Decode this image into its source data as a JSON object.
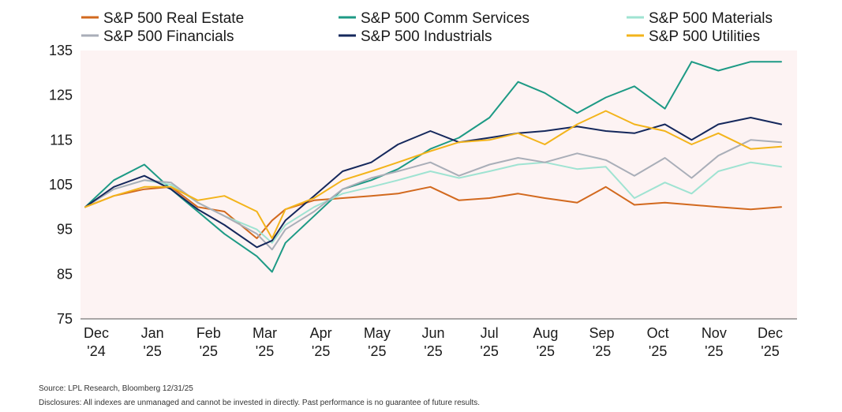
{
  "chart_data": {
    "type": "line",
    "title": "",
    "xlabel": "",
    "ylabel": "",
    "ylim": [
      75,
      135
    ],
    "y_ticks": [
      135,
      125,
      115,
      105,
      95,
      85,
      75
    ],
    "x_ticks": [
      {
        "month": "Dec",
        "year": "'24"
      },
      {
        "month": "Jan",
        "year": "'25"
      },
      {
        "month": "Feb",
        "year": "'25"
      },
      {
        "month": "Mar",
        "year": "'25"
      },
      {
        "month": "Apr",
        "year": "'25"
      },
      {
        "month": "May",
        "year": "'25"
      },
      {
        "month": "Jun",
        "year": "'25"
      },
      {
        "month": "Jul",
        "year": "'25"
      },
      {
        "month": "Aug",
        "year": "'25"
      },
      {
        "month": "Sep",
        "year": "'25"
      },
      {
        "month": "Oct",
        "year": "'25"
      },
      {
        "month": "Nov",
        "year": "'25"
      },
      {
        "month": "Dec",
        "year": "'25"
      }
    ],
    "x_dates": [
      "2024-12-31",
      "2025-01-15",
      "2025-01-31",
      "2025-02-14",
      "2025-02-28",
      "2025-03-14",
      "2025-03-31",
      "2025-04-08",
      "2025-04-15",
      "2025-04-30",
      "2025-05-15",
      "2025-05-30",
      "2025-06-13",
      "2025-06-30",
      "2025-07-15",
      "2025-07-31",
      "2025-08-15",
      "2025-08-29",
      "2025-09-15",
      "2025-09-30",
      "2025-10-15",
      "2025-10-31",
      "2025-11-14",
      "2025-11-28",
      "2025-12-15",
      "2025-12-31"
    ],
    "legend_position": "top",
    "grid": false,
    "series": [
      {
        "name": "S&P 500 Real Estate",
        "color": "#d2691e",
        "values": [
          100,
          102.5,
          104,
          104.5,
          100,
          99,
          93,
          97,
          99.5,
          101.5,
          102,
          102.5,
          103,
          104.5,
          101.5,
          102,
          103,
          102,
          101,
          104.5,
          100.5,
          101,
          100.5,
          100,
          99.5,
          100
        ]
      },
      {
        "name": "S&P 500 Comm Services",
        "color": "#1d9a85",
        "values": [
          100,
          106,
          109.5,
          104,
          99,
          94,
          89,
          85.5,
          92,
          98,
          104,
          106,
          108.5,
          113,
          115.5,
          120,
          128,
          125.5,
          121,
          124.5,
          127,
          122,
          132.5,
          130.5,
          132.5,
          132.5
        ]
      },
      {
        "name": "S&P 500 Materials",
        "color": "#9fe3d2",
        "values": [
          100,
          104,
          106,
          105,
          101,
          98,
          95,
          92,
          96,
          100,
          103,
          104.5,
          106,
          108,
          106.5,
          108,
          109.5,
          110,
          108.5,
          109,
          102,
          105.5,
          103,
          108,
          110,
          109
        ]
      },
      {
        "name": "S&P 500 Financials",
        "color": "#a9aeb8",
        "values": [
          100,
          104,
          106,
          105.5,
          101,
          98,
          94,
          90.5,
          95,
          99,
          104,
          106.5,
          108,
          110,
          107,
          109.5,
          111,
          110,
          112,
          110.5,
          107,
          111,
          106.5,
          111.5,
          115,
          114.5
        ]
      },
      {
        "name": "S&P 500 Industrials",
        "color": "#15285c",
        "values": [
          100,
          104.5,
          107,
          104,
          99.5,
          96,
          91,
          92.5,
          97,
          102.5,
          108,
          110,
          114,
          117,
          114.5,
          115.5,
          116.5,
          117,
          118,
          117,
          116.5,
          118.5,
          115,
          118.5,
          120,
          118.5
        ]
      },
      {
        "name": "S&P 500 Utilities",
        "color": "#f3b41b",
        "values": [
          100,
          102.5,
          104.5,
          104.5,
          101.5,
          102.5,
          99,
          93,
          99.5,
          102,
          106,
          108,
          110,
          112.5,
          114.5,
          115,
          116.5,
          114,
          118.5,
          121.5,
          118.5,
          117,
          114,
          116.5,
          113,
          113.5
        ]
      }
    ]
  },
  "footer": {
    "source": "Source: LPL Research, Bloomberg 12/31/25",
    "disclosure": "Disclosures: All indexes are unmanaged and cannot be invested in directly. Past performance is no guarantee of future results."
  }
}
